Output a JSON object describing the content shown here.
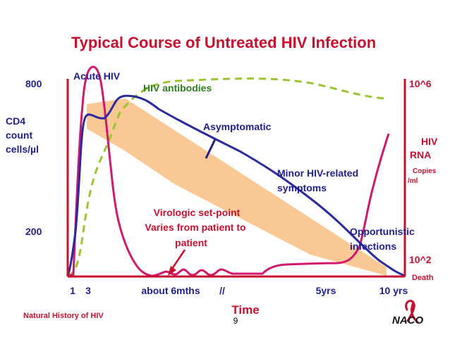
{
  "slide": {
    "footer_left": "Natural History of HIV",
    "page_number": "9",
    "logo_text": "NACO"
  },
  "colors": {
    "title": "#c8102e",
    "axis": "#c8102e",
    "label": "#1f1f8f",
    "cd4_line": "#2a2a9e",
    "rna_line": "#d0186e",
    "antibody_line": "#9ac531",
    "shading": "#f9c58f"
  },
  "chart_data": {
    "type": "line",
    "title": "Typical Course of Untreated HIV Infection",
    "xlabel": "Time",
    "x_tick_labels": [
      "1",
      "3",
      "about 6mths",
      "//",
      "5yrs",
      "10 yrs"
    ],
    "left_axis": {
      "label_lines": [
        "CD4",
        "count",
        "cells/µl"
      ],
      "tick_labels": [
        "800",
        "200"
      ]
    },
    "right_axis": {
      "tick_labels": [
        "10^6",
        "10^2"
      ],
      "label_lines": [
        "HIV",
        "RNA"
      ],
      "unit_lines": [
        "Copies",
        "/ml"
      ],
      "end_label": "Death"
    },
    "series": [
      {
        "name": "Acute HIV"
      },
      {
        "name": "HIV antibodies"
      }
    ],
    "annotations": {
      "asymptomatic": "Asymptomatic",
      "minor_symptoms_lines": [
        "Minor HIV-related",
        "symptoms"
      ],
      "setpoint_lines": [
        "Virologic set-point",
        "Varies from patient to",
        "patient"
      ],
      "opportunistic_lines": [
        "Opportunistic",
        "infections"
      ]
    },
    "grid": false
  }
}
